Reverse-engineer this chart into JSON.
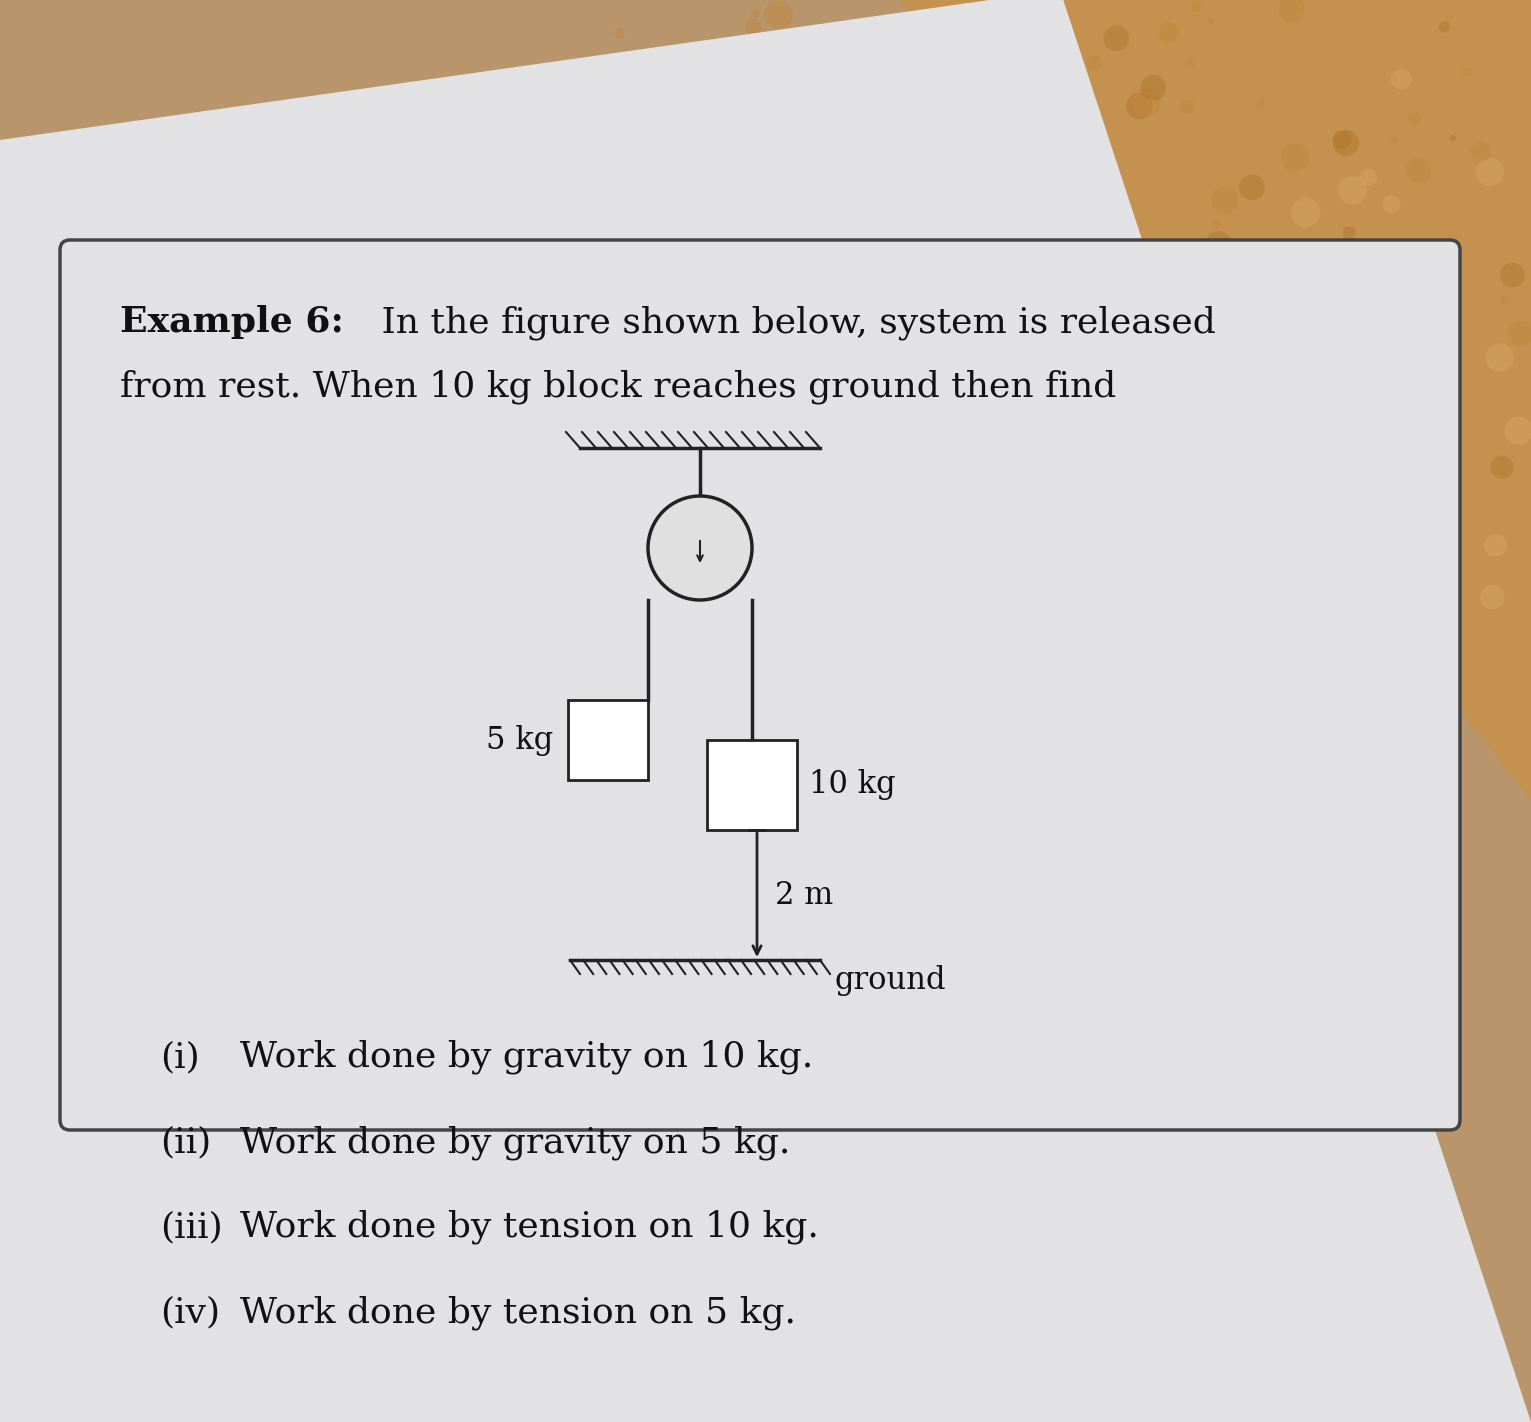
{
  "bg_color_top_right": "#c8a870",
  "bg_color_main": "#b8956a",
  "paper_color": "#e8e8ea",
  "box_color": "#ffffff",
  "box_edge": "#222222",
  "line_color": "#222222",
  "text_color": "#111111",
  "title_bold": "Example 6:",
  "title_rest_line1": " In the figure shown below, system is released",
  "title_line2": "from rest. When 10 kg block reaches ground then find",
  "label_5kg": "5 kg",
  "label_10kg": "10 kg",
  "label_2m": "2 m",
  "label_ground": "ground",
  "items": [
    [
      "(i)",
      "Work done by gravity on 10 kg."
    ],
    [
      "(ii)",
      "Work done by gravity on 5 kg."
    ],
    [
      "(iii)",
      "Work done by tension on 10 kg."
    ],
    [
      "(iv)",
      "Work done by tension on 5 kg."
    ]
  ]
}
